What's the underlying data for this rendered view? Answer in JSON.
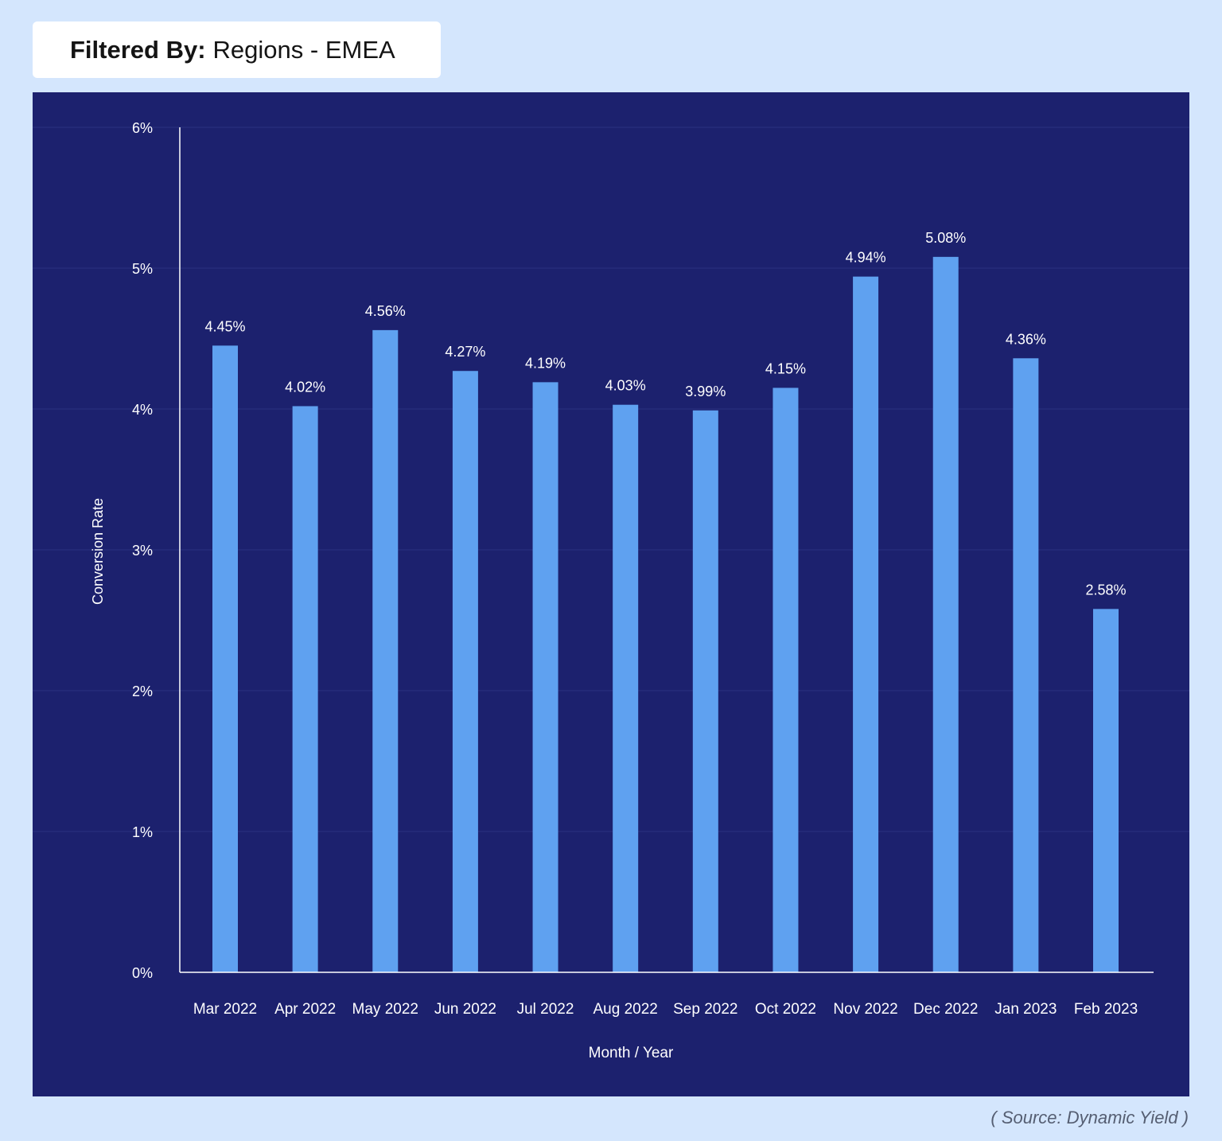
{
  "filter": {
    "label": "Filtered By:",
    "value": "Regions - EMEA"
  },
  "source": "( Source: Dynamic Yield )",
  "colors": {
    "page_background": "#d4e6fd",
    "panel_background": "#1c216e",
    "bar": "#5fa1f0",
    "axis": "#ffffff",
    "text": "#ffffff"
  },
  "chart_data": {
    "type": "bar",
    "title": "",
    "xlabel": "Month / Year",
    "ylabel": "Conversion Rate",
    "ylim": [
      0,
      6
    ],
    "y_ticks": [
      "0%",
      "1%",
      "2%",
      "3%",
      "4%",
      "5%",
      "6%"
    ],
    "y_tick_values": [
      0,
      1,
      2,
      3,
      4,
      5,
      6
    ],
    "categories": [
      "Mar 2022",
      "Apr 2022",
      "May 2022",
      "Jun 2022",
      "Jul 2022",
      "Aug 2022",
      "Sep 2022",
      "Oct 2022",
      "Nov 2022",
      "Dec 2022",
      "Jan 2023",
      "Feb 2023"
    ],
    "values": [
      4.45,
      4.02,
      4.56,
      4.27,
      4.19,
      4.03,
      3.99,
      4.15,
      4.94,
      5.08,
      4.36,
      2.58
    ],
    "value_labels": [
      "4.45%",
      "4.02%",
      "4.56%",
      "4.27%",
      "4.19%",
      "4.03%",
      "3.99%",
      "4.15%",
      "4.94%",
      "5.08%",
      "4.36%",
      "2.58%"
    ],
    "grid": true,
    "legend": "none"
  }
}
